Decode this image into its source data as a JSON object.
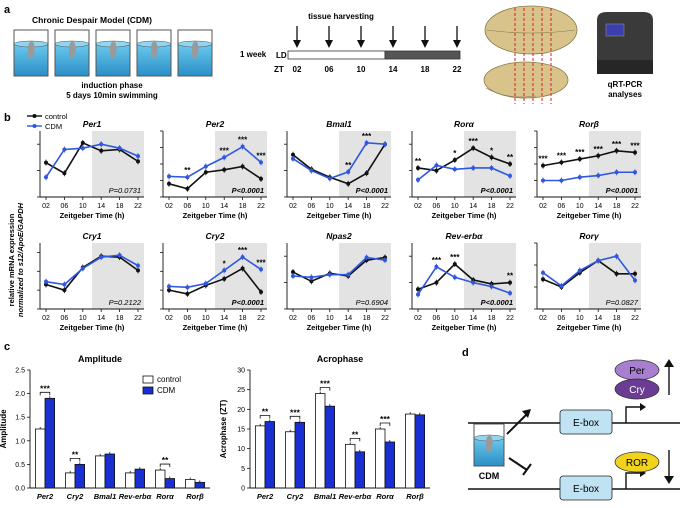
{
  "panel_a": {
    "letter": "a",
    "model_title": "Chronic Despair Model (CDM)",
    "induction_line1": "induction phase",
    "induction_line2": "5 days 10min swimming",
    "one_week": "1 week",
    "tissue_harvesting": "tissue harvesting",
    "ld_label": "LD",
    "zt_label": "ZT",
    "zt_times": [
      "02",
      "06",
      "10",
      "14",
      "18",
      "22"
    ],
    "qrt_line1": "qRT-PCR",
    "qrt_line2": "analyses"
  },
  "panel_b": {
    "letter": "b",
    "legend": {
      "control": "control",
      "cdm": "CDM"
    },
    "ylabel_line1": "relative mRNA expression",
    "ylabel_line2": "normalized to s12/ApoE/GAPDH",
    "xlabel": "Zeitgeber Time (h)"
  },
  "panel_c": {
    "letter": "c",
    "legend": {
      "control": "control",
      "cdm": "CDM"
    }
  },
  "panel_d": {
    "letter": "d",
    "ebox": "E-box",
    "per": "Per",
    "cry": "Cry",
    "ror": "ROR",
    "cdm": "CDM"
  },
  "colors": {
    "control": "#111111",
    "cdm": "#2f57e0",
    "bar_cdm": "#1a2fd1",
    "shade": "#e3e3e3",
    "per_oval": "#a87fcf",
    "cry_oval": "#6a3c93",
    "ror_oval": "#f1d21c",
    "ebox": "#bfe3f2"
  },
  "chart_data": [
    {
      "type": "line",
      "title": "Per1",
      "x": [
        "02",
        "06",
        "10",
        "14",
        "18",
        "22"
      ],
      "xlabel": "Zeitgeber Time (h)",
      "pvalue": "P=0.0731",
      "ylim": [
        0,
        2.5
      ],
      "series": [
        {
          "name": "control",
          "values": [
            1.3,
            0.9,
            2.05,
            1.75,
            1.8,
            1.35
          ]
        },
        {
          "name": "CDM",
          "values": [
            0.75,
            1.8,
            1.85,
            2.0,
            1.85,
            1.55
          ]
        }
      ],
      "stars": []
    },
    {
      "type": "line",
      "title": "Per2",
      "x": [
        "02",
        "06",
        "10",
        "14",
        "18",
        "22"
      ],
      "xlabel": "Zeitgeber Time (h)",
      "pvalue": "P<0.0001",
      "ylim": [
        0,
        8
      ],
      "series": [
        {
          "name": "control",
          "values": [
            1.6,
            1.0,
            3.0,
            3.3,
            3.7,
            2.2
          ]
        },
        {
          "name": "CDM",
          "values": [
            2.5,
            2.4,
            3.7,
            4.8,
            6.1,
            4.2
          ]
        }
      ],
      "stars": [
        "",
        "**",
        "",
        "***",
        "***",
        "***"
      ]
    },
    {
      "type": "line",
      "title": "Bmal1",
      "x": [
        "02",
        "06",
        "10",
        "14",
        "18",
        "22"
      ],
      "xlabel": "Zeitgeber Time (h)",
      "pvalue": "P<0.0001",
      "ylim": [
        0,
        2.5
      ],
      "series": [
        {
          "name": "control",
          "values": [
            1.6,
            1.05,
            0.75,
            0.5,
            0.9,
            2.0
          ]
        },
        {
          "name": "CDM",
          "values": [
            1.45,
            1.0,
            0.7,
            0.95,
            2.05,
            2.0
          ]
        }
      ],
      "stars": [
        "",
        "",
        "",
        "**",
        "***",
        ""
      ]
    },
    {
      "type": "line",
      "title": "Rorα",
      "x": [
        "02",
        "06",
        "10",
        "14",
        "18",
        "22"
      ],
      "xlabel": "Zeitgeber Time (h)",
      "pvalue": "P<0.0001",
      "ylim": [
        0,
        2.5
      ],
      "series": [
        {
          "name": "control",
          "values": [
            1.1,
            1.0,
            1.4,
            1.85,
            1.5,
            1.25
          ]
        },
        {
          "name": "CDM",
          "values": [
            0.65,
            1.2,
            1.05,
            1.1,
            1.1,
            0.8
          ]
        }
      ],
      "stars": [
        "**",
        "",
        "*",
        "***",
        "*",
        "**"
      ]
    },
    {
      "type": "line",
      "title": "Rorβ",
      "x": [
        "02",
        "06",
        "10",
        "14",
        "18",
        "22"
      ],
      "xlabel": "Zeitgeber Time (h)",
      "pvalue": "P<0.0001",
      "ylim": [
        0,
        2.0
      ],
      "series": [
        {
          "name": "control",
          "values": [
            0.95,
            1.05,
            1.15,
            1.25,
            1.4,
            1.35
          ]
        },
        {
          "name": "CDM",
          "values": [
            0.5,
            0.5,
            0.6,
            0.65,
            0.75,
            0.75
          ]
        }
      ],
      "stars": [
        "***",
        "***",
        "***",
        "***",
        "***",
        "***"
      ]
    },
    {
      "type": "line",
      "title": "Cry1",
      "x": [
        "02",
        "06",
        "10",
        "14",
        "18",
        "22"
      ],
      "xlabel": "Zeitgeber Time (h)",
      "pvalue": "P=0.2122",
      "ylim": [
        0,
        3.5
      ],
      "series": [
        {
          "name": "control",
          "values": [
            1.3,
            1.0,
            2.2,
            2.8,
            2.75,
            2.05
          ]
        },
        {
          "name": "CDM",
          "values": [
            1.45,
            1.3,
            2.15,
            2.75,
            2.85,
            2.3
          ]
        }
      ],
      "stars": []
    },
    {
      "type": "line",
      "title": "Cry2",
      "x": [
        "02",
        "06",
        "10",
        "14",
        "18",
        "22"
      ],
      "xlabel": "Zeitgeber Time (h)",
      "pvalue": "P<0.0001",
      "ylim": [
        0,
        3.5
      ],
      "series": [
        {
          "name": "control",
          "values": [
            1.0,
            0.8,
            1.25,
            1.6,
            2.15,
            0.9
          ]
        },
        {
          "name": "CDM",
          "values": [
            1.2,
            1.15,
            1.35,
            2.05,
            2.75,
            2.1
          ]
        }
      ],
      "stars": [
        "",
        "",
        "",
        "*",
        "***",
        "***"
      ]
    },
    {
      "type": "line",
      "title": "Npas2",
      "x": [
        "02",
        "06",
        "10",
        "14",
        "18",
        "22"
      ],
      "xlabel": "Zeitgeber Time (h)",
      "pvalue": "P=0.6904",
      "ylim": [
        0,
        2.5
      ],
      "series": [
        {
          "name": "control",
          "values": [
            1.4,
            1.05,
            1.35,
            1.25,
            1.85,
            1.95
          ]
        },
        {
          "name": "CDM",
          "values": [
            1.25,
            1.2,
            1.3,
            1.3,
            1.95,
            1.85
          ]
        }
      ],
      "stars": []
    },
    {
      "type": "line",
      "title": "Rev-erbα",
      "x": [
        "02",
        "06",
        "10",
        "14",
        "18",
        "22"
      ],
      "xlabel": "Zeitgeber Time (h)",
      "pvalue": "P<0.0001",
      "ylim": [
        0,
        2.5
      ],
      "series": [
        {
          "name": "control",
          "values": [
            0.75,
            1.0,
            1.7,
            1.1,
            0.95,
            1.0
          ]
        },
        {
          "name": "CDM",
          "values": [
            0.55,
            1.6,
            1.2,
            1.0,
            0.85,
            0.6
          ]
        }
      ],
      "stars": [
        "",
        "***",
        "***",
        "",
        "",
        "**"
      ]
    },
    {
      "type": "line",
      "title": "Rorγ",
      "x": [
        "02",
        "06",
        "10",
        "14",
        "18",
        "22"
      ],
      "xlabel": "Zeitgeber Time (h)",
      "pvalue": "P=0.0827",
      "ylim": [
        0,
        3.0
      ],
      "series": [
        {
          "name": "control",
          "values": [
            1.35,
            1.0,
            1.65,
            2.2,
            1.6,
            1.6
          ]
        },
        {
          "name": "CDM",
          "values": [
            1.65,
            1.05,
            1.75,
            2.2,
            2.4,
            1.3
          ]
        }
      ],
      "stars": []
    },
    {
      "type": "bar",
      "title": "Amplitude",
      "ylabel": "Amplitude",
      "ylim": [
        0,
        2.5
      ],
      "yticks": [
        0,
        0.5,
        1.0,
        1.5,
        2.0,
        2.5
      ],
      "categories": [
        "Per2",
        "Cry2",
        "Bmal1",
        "Rev-erbα",
        "Rorα",
        "Rorβ"
      ],
      "series": [
        {
          "name": "control",
          "values": [
            1.25,
            0.32,
            0.68,
            0.32,
            0.38,
            0.18
          ]
        },
        {
          "name": "CDM",
          "values": [
            1.9,
            0.5,
            0.72,
            0.4,
            0.2,
            0.12
          ]
        }
      ],
      "stars": [
        "***",
        "**",
        "",
        "",
        "**",
        ""
      ]
    },
    {
      "type": "bar",
      "title": "Acrophase",
      "ylabel": "Acrophase (ZT)",
      "ylim": [
        0,
        30
      ],
      "yticks": [
        0,
        5,
        10,
        15,
        20,
        25,
        30
      ],
      "categories": [
        "Per2",
        "Cry2",
        "Bmal1",
        "Rev-erbα",
        "Rorα",
        "Rorβ"
      ],
      "series": [
        {
          "name": "control",
          "values": [
            15.8,
            14.3,
            24.0,
            11.1,
            15.0,
            18.8
          ]
        },
        {
          "name": "CDM",
          "values": [
            16.9,
            16.7,
            20.8,
            9.2,
            11.7,
            18.6
          ]
        }
      ],
      "stars": [
        "**",
        "***",
        "***",
        "**",
        "***",
        ""
      ]
    }
  ]
}
